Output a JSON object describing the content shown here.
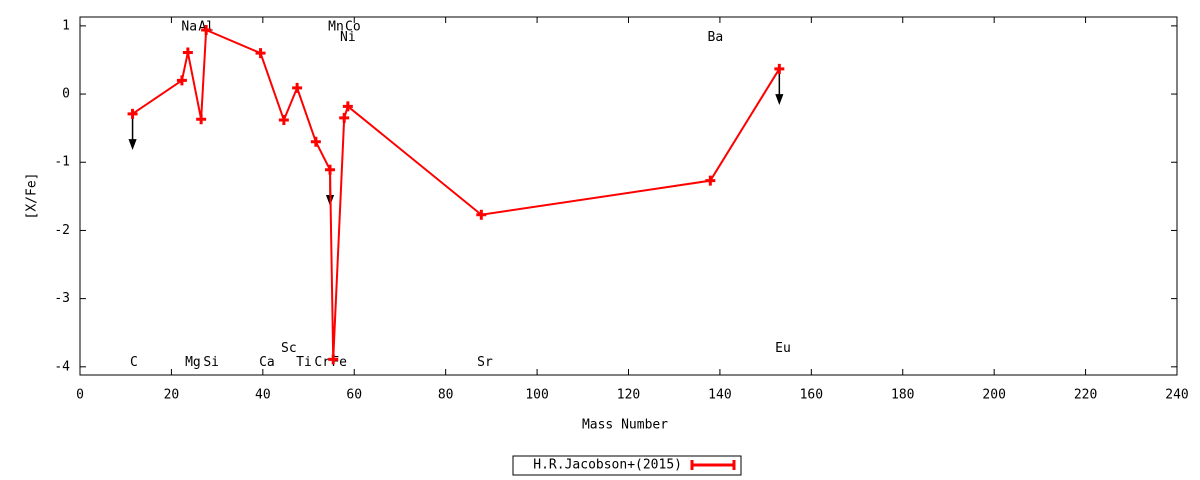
{
  "chart_data": {
    "type": "line",
    "x_label": "Mass Number",
    "y_label": "[X/Fe]",
    "xlim": [
      0,
      240
    ],
    "xticks": [
      0,
      20,
      40,
      60,
      80,
      100,
      120,
      140,
      160,
      180,
      200,
      220,
      240
    ],
    "ylim": [
      -4.12,
      1.13
    ],
    "yticks": [
      -4,
      -3,
      -2,
      -1,
      0,
      1
    ],
    "legend": "bottom",
    "series": [
      {
        "name": "H.R.Jacobson+(2015)",
        "color": "#ff0000",
        "x": [
          11.5,
          22.3,
          23.6,
          26.5,
          27.6,
          39.5,
          44.6,
          47.5,
          51.6,
          54.7,
          55.4,
          57.8,
          58.6,
          87.8,
          137.9,
          153
        ],
        "values": [
          -0.29,
          0.2,
          0.61,
          -0.37,
          0.94,
          0.6,
          -0.38,
          0.09,
          -0.7,
          -1.11,
          -3.89,
          -0.35,
          -0.18,
          -1.77,
          -1.27,
          0.37
        ],
        "upper_limits": [
          true,
          false,
          false,
          false,
          false,
          false,
          false,
          false,
          false,
          true,
          false,
          false,
          false,
          false,
          false,
          true
        ]
      }
    ],
    "annotations": [
      {
        "text": "Na",
        "x": 23.9,
        "y": 0.98
      },
      {
        "text": "Al",
        "x": 27.6,
        "y": 0.98
      },
      {
        "text": "Mn",
        "x": 56,
        "y": 0.98
      },
      {
        "text": "Co",
        "x": 59.7,
        "y": 0.98
      },
      {
        "text": "Ni",
        "x": 58.6,
        "y": 0.83
      },
      {
        "text": "Ba",
        "x": 139,
        "y": 0.83
      },
      {
        "text": "C",
        "x": 11.8,
        "y": -3.94
      },
      {
        "text": "Mg",
        "x": 24.7,
        "y": -3.94
      },
      {
        "text": "Si",
        "x": 28.7,
        "y": -3.94
      },
      {
        "text": "Ca",
        "x": 40.9,
        "y": -3.94
      },
      {
        "text": "Sc",
        "x": 45.7,
        "y": -3.73
      },
      {
        "text": "Ti",
        "x": 49,
        "y": -3.94
      },
      {
        "text": "Cr",
        "x": 53,
        "y": -3.94
      },
      {
        "text": "Fe",
        "x": 56.7,
        "y": -3.94
      },
      {
        "text": "Sr",
        "x": 88.6,
        "y": -3.94
      },
      {
        "text": "Eu",
        "x": 153.8,
        "y": -3.73
      }
    ]
  }
}
